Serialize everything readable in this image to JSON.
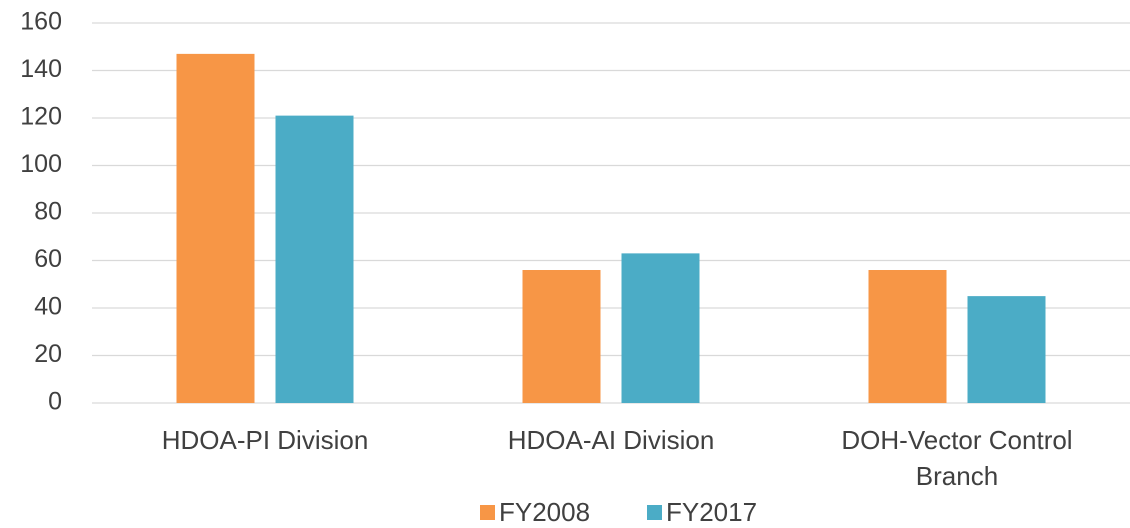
{
  "chart_data": {
    "type": "bar",
    "categories": [
      "HDOA-PI Division",
      "HDOA-AI Division",
      "DOH-Vector Control Branch"
    ],
    "series": [
      {
        "name": "FY2008",
        "color": "#f79646",
        "values": [
          147,
          56,
          56
        ]
      },
      {
        "name": "FY2017",
        "color": "#4bacc6",
        "values": [
          121,
          63,
          45
        ]
      }
    ],
    "ylim": [
      0,
      160
    ],
    "yticks": [
      0,
      20,
      40,
      60,
      80,
      100,
      120,
      140,
      160
    ],
    "grid": true,
    "legend": "bottom"
  }
}
